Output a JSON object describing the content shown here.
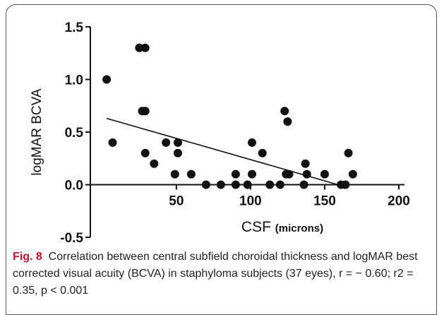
{
  "chart_data": {
    "type": "scatter",
    "ylabel": "logMAR BCVA",
    "xlabel": "CSF",
    "xlabel_unit": "(microns)",
    "x": [
      3,
      7,
      25,
      29,
      27,
      29,
      29,
      35,
      43,
      49,
      51,
      51,
      60,
      70,
      80,
      90,
      90,
      98,
      101,
      101,
      108,
      113,
      123,
      125,
      124,
      126,
      120,
      137,
      138,
      136,
      150,
      161,
      164,
      166,
      169
    ],
    "values": [
      1.0,
      0.4,
      1.3,
      1.3,
      0.7,
      0.7,
      0.3,
      0.2,
      0.4,
      0.1,
      0.4,
      0.3,
      0.1,
      0.0,
      0.0,
      0.1,
      0.0,
      0.0,
      0.1,
      0.4,
      0.3,
      0.0,
      0.7,
      0.6,
      0.1,
      0.1,
      0.0,
      0.2,
      0.1,
      0.0,
      0.1,
      0.0,
      0.0,
      0.3,
      0.1
    ],
    "color": "#111111",
    "trendline": {
      "x": [
        3,
        159
      ],
      "y": [
        0.63,
        0.0
      ]
    },
    "xlim": [
      -8,
      200
    ],
    "xticks": [
      50,
      100,
      150,
      200
    ],
    "ylim": [
      -0.5,
      1.5
    ],
    "yticks": [
      {
        "value": 1.5,
        "label": "1.5"
      },
      {
        "value": 1.0,
        "label": "1.0"
      },
      {
        "value": 0.5,
        "label": "0.5"
      },
      {
        "value": 0.0,
        "label": "0.0"
      },
      {
        "value": -0.5,
        "label": "-0.5"
      }
    ],
    "caption_label": "Fig. 8",
    "caption": "Correlation between central subfield choroidal thickness and logMAR best corrected visual acuity (BCVA) in staphyloma subjects (37 eyes), r = − 0.60; r2 = 0.35, p < 0.001"
  }
}
